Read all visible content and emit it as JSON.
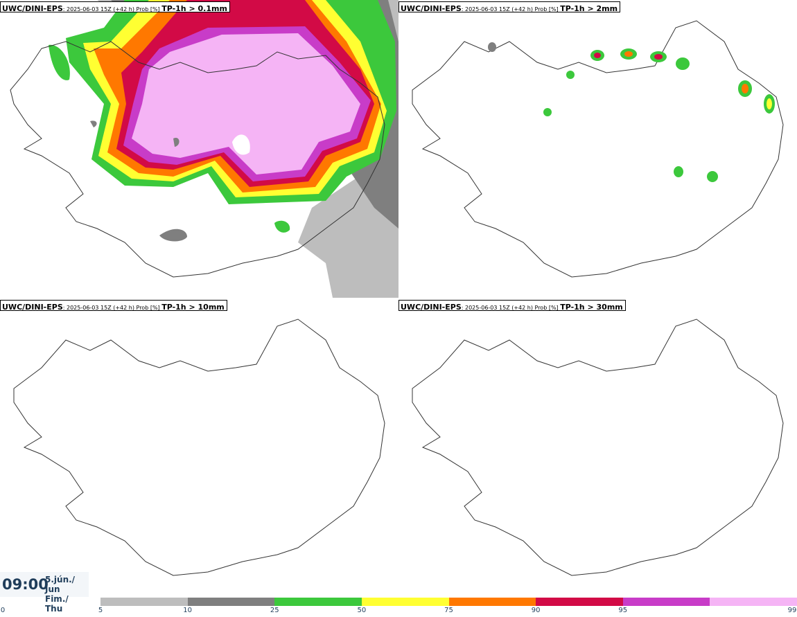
{
  "panels": [
    {
      "model": "UWC/DINI-EPS",
      "info": ": 2025-06-03 15Z (+42 h) Prob [%] ",
      "threshold": "TP-1h > 0.1mm"
    },
    {
      "model": "UWC/DINI-EPS",
      "info": ": 2025-06-03 15Z (+42 h) Prob [%] ",
      "threshold": "TP-1h > 2mm"
    },
    {
      "model": "UWC/DINI-EPS",
      "info": ": 2025-06-03 15Z (+42 h) Prob [%] ",
      "threshold": "TP-1h > 10mm"
    },
    {
      "model": "UWC/DINI-EPS",
      "info": ": 2025-06-03 15Z (+42 h) Prob [%] ",
      "threshold": "TP-1h > 30mm"
    }
  ],
  "time": {
    "clock": "09:00",
    "date_line1": "5.jún./ Jun",
    "date_line2": "Fim./ Thu"
  },
  "colorbar": {
    "colors": [
      "#bdbdbd",
      "#7f7f7f",
      "#3cc83c",
      "#ffff32",
      "#ff7800",
      "#d20a46",
      "#c83cc8",
      "#f5b4f5"
    ],
    "ticks": [
      "0",
      "5",
      "10",
      "25",
      "50",
      "75",
      "90",
      "95",
      "99"
    ]
  }
}
